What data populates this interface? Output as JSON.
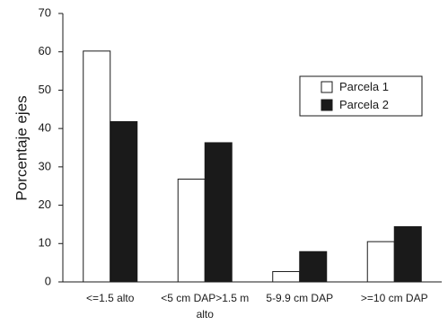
{
  "chart_data": {
    "type": "bar",
    "title": "",
    "xlabel": "",
    "ylabel": "Porcentaje ejes",
    "ylim": [
      0,
      70
    ],
    "yticks": [
      0,
      10,
      20,
      30,
      40,
      50,
      60,
      70
    ],
    "grid": false,
    "legend_position": "top-right",
    "categories": [
      [
        "<=1.5 alto"
      ],
      [
        "<5 cm DAP>1.5 m",
        "alto"
      ],
      [
        "5-9.9 cm DAP"
      ],
      [
        ">=10 cm DAP"
      ]
    ],
    "series": [
      {
        "name": "Parcela 1",
        "color": "#ffffff",
        "values": [
          60.2,
          26.8,
          2.7,
          10.5
        ]
      },
      {
        "name": "Parcela 2",
        "color": "#1a1a1a",
        "values": [
          41.8,
          36.3,
          7.9,
          14.4
        ]
      }
    ]
  }
}
